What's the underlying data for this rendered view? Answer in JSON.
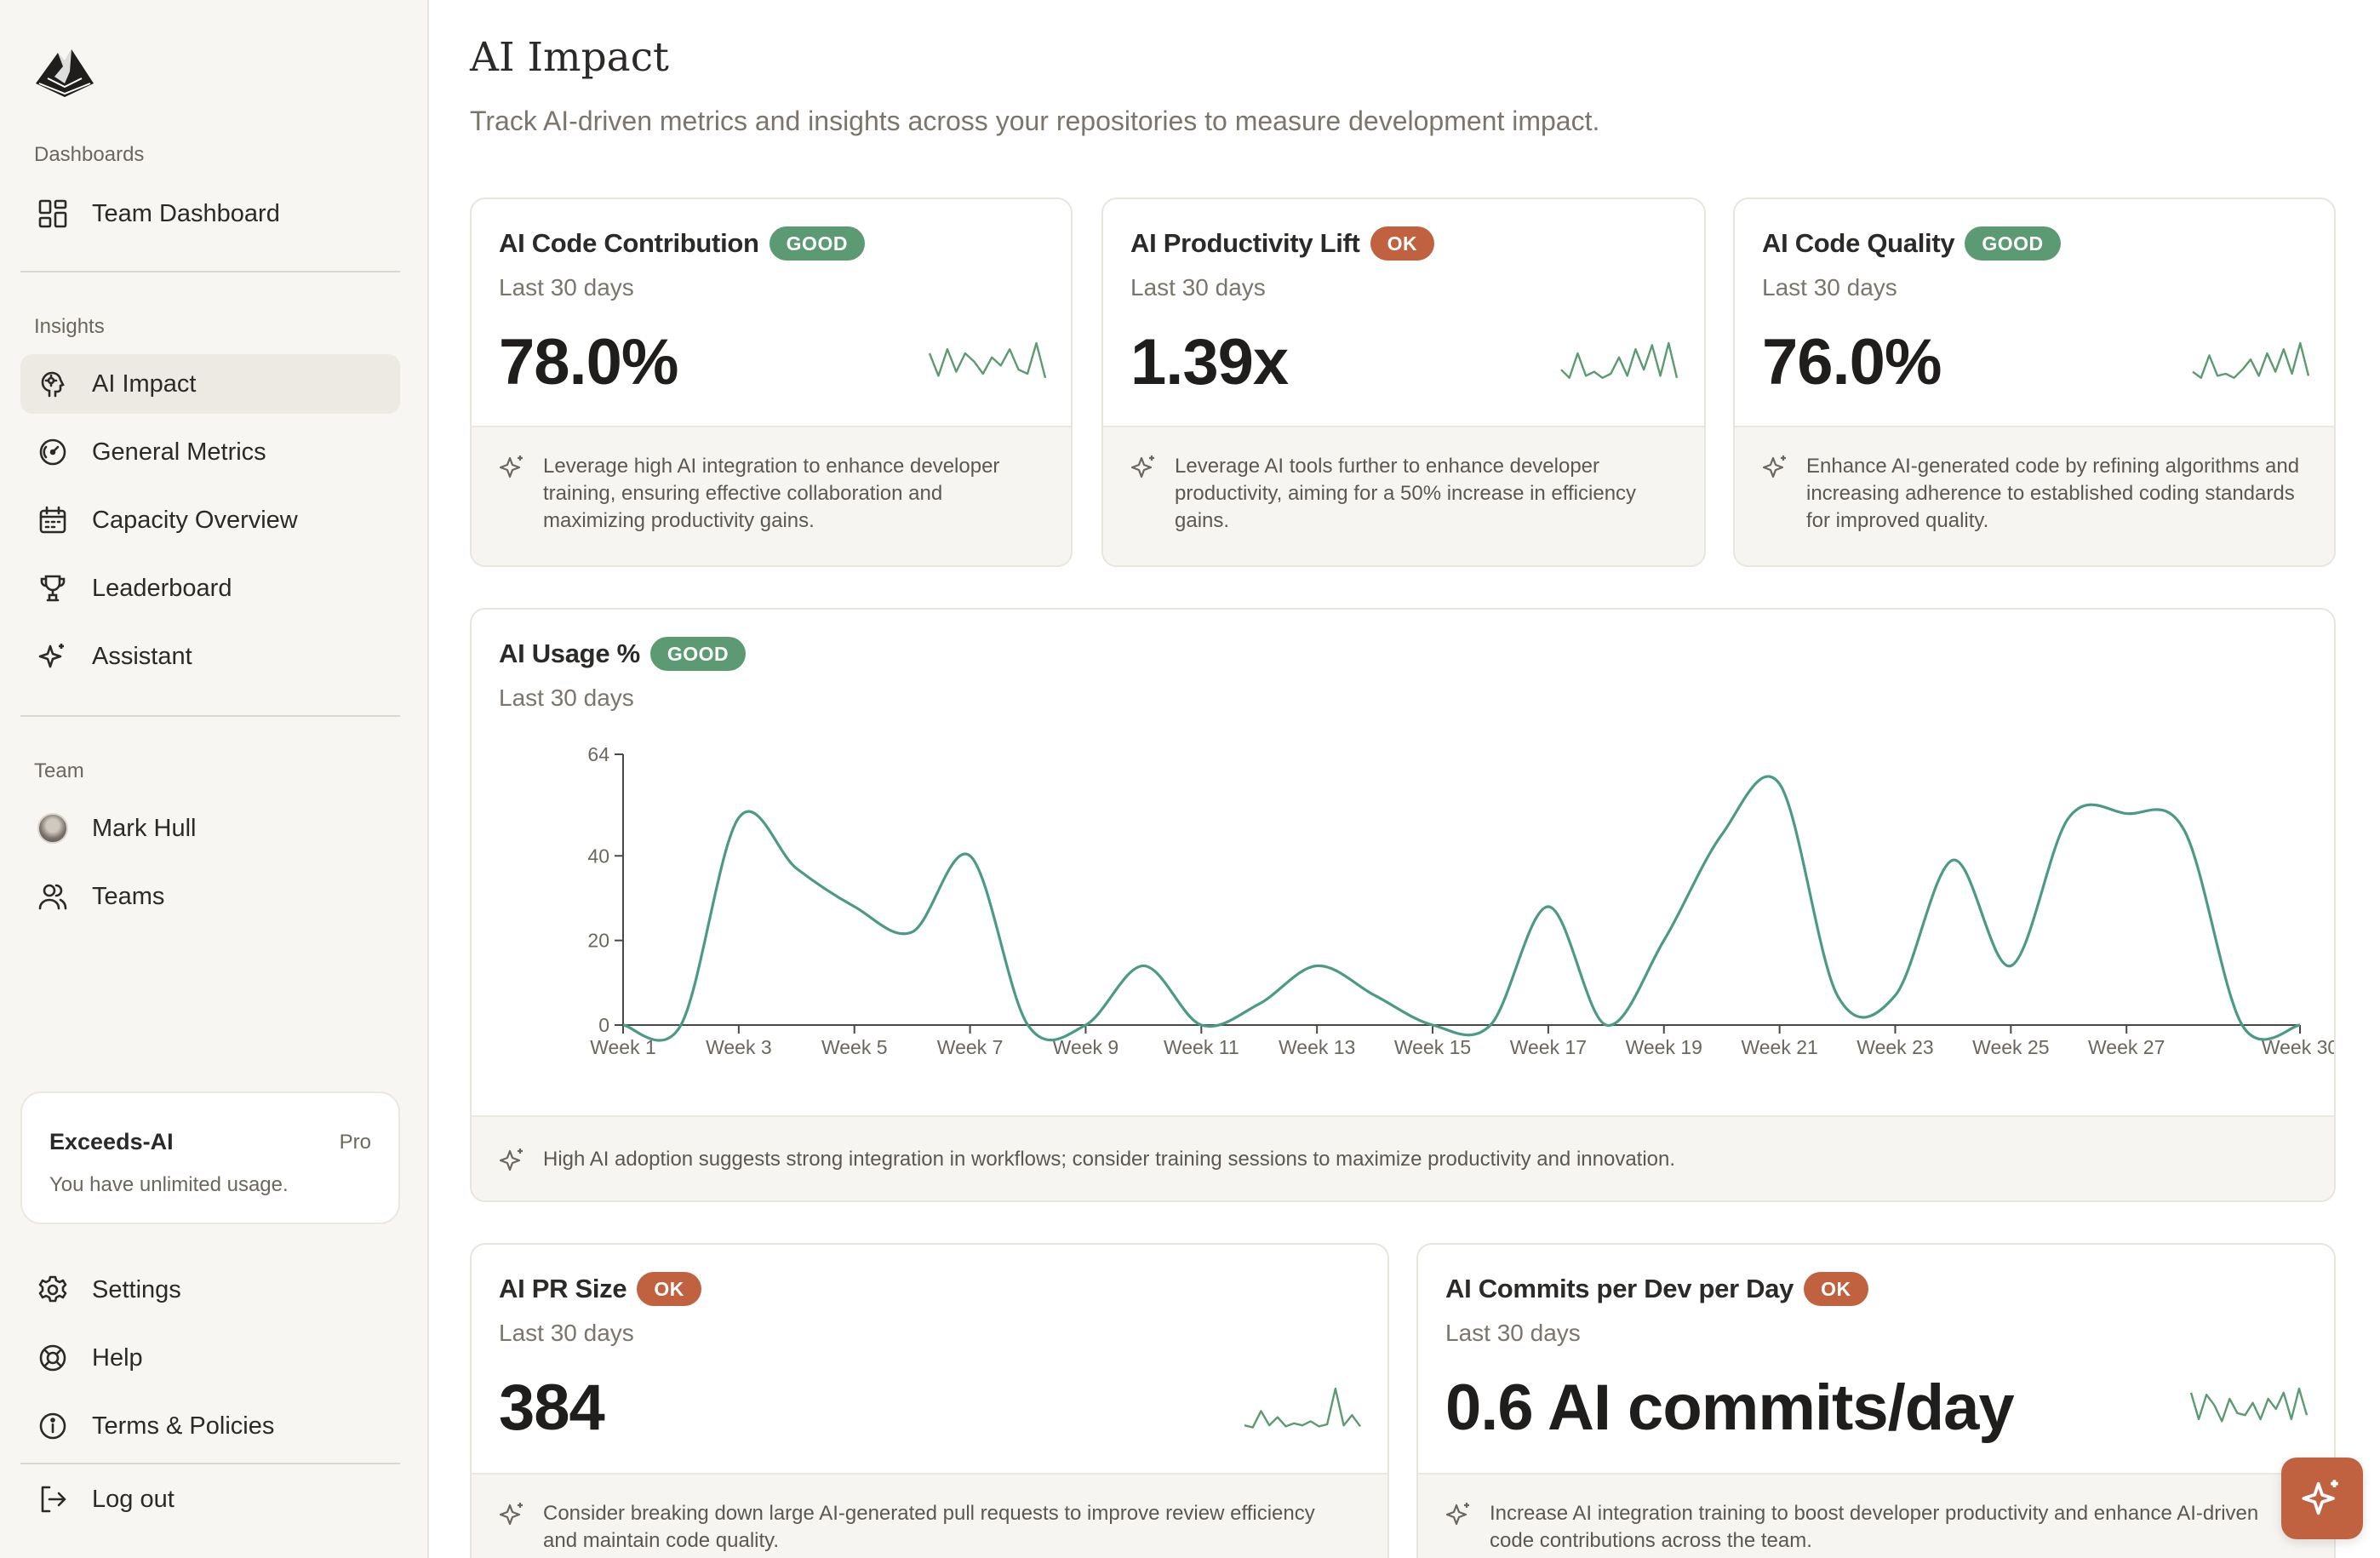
{
  "sidebar": {
    "sections": {
      "dashboards": "Dashboards",
      "insights": "Insights",
      "team": "Team"
    },
    "items": {
      "team_dashboard": "Team Dashboard",
      "ai_impact": "AI Impact",
      "general_metrics": "General Metrics",
      "capacity_overview": "Capacity Overview",
      "leaderboard": "Leaderboard",
      "assistant": "Assistant",
      "mark_hull": "Mark Hull",
      "teams": "Teams",
      "settings": "Settings",
      "help": "Help",
      "terms": "Terms & Policies",
      "logout": "Log out"
    },
    "plan": {
      "name": "Exceeds-AI",
      "tier": "Pro",
      "desc": "You have unlimited usage."
    }
  },
  "header": {
    "title": "AI Impact",
    "subtitle": "Track AI-driven metrics and insights across your repositories to measure development impact."
  },
  "cards": {
    "contribution": {
      "title": "AI Code Contribution",
      "badge": "GOOD",
      "period": "Last 30 days",
      "value": "78.0%",
      "insight": "Leverage high AI integration to enhance developer training, ensuring effective collaboration and maximizing productivity gains."
    },
    "productivity": {
      "title": "AI Productivity Lift",
      "badge": "OK",
      "period": "Last 30 days",
      "value": "1.39x",
      "insight": "Leverage AI tools further to enhance developer productivity, aiming for a 50% increase in efficiency gains."
    },
    "quality": {
      "title": "AI Code Quality",
      "badge": "GOOD",
      "period": "Last 30 days",
      "value": "76.0%",
      "insight": "Enhance AI-generated code by refining algorithms and increasing adherence to established coding standards for improved quality."
    },
    "usage": {
      "title": "AI Usage %",
      "badge": "GOOD",
      "period": "Last 30 days",
      "insight": "High AI adoption suggests strong integration in workflows; consider training sessions to maximize productivity and innovation."
    },
    "pr_size": {
      "title": "AI PR Size",
      "badge": "OK",
      "period": "Last 30 days",
      "value": "384",
      "insight": "Consider breaking down large AI-generated pull requests to improve review efficiency and maintain code quality."
    },
    "commits": {
      "title": "AI Commits per Dev per Day",
      "badge": "OK",
      "period": "Last 30 days",
      "value": "0.6 AI commits/day",
      "insight": "Increase AI integration training to boost developer productivity and enhance AI-driven code contributions across the team."
    }
  },
  "colors": {
    "good": "#5b9a73",
    "ok": "#c0613f",
    "line": "#4a9a85",
    "spark": "#5b9a73"
  },
  "chart_data": {
    "type": "line",
    "title": "AI Usage %",
    "x": [
      "Week 1",
      "Week 2",
      "Week 3",
      "Week 4",
      "Week 5",
      "Week 6",
      "Week 7",
      "Week 8",
      "Week 9",
      "Week 10",
      "Week 11",
      "Week 12",
      "Week 13",
      "Week 14",
      "Week 15",
      "Week 16",
      "Week 17",
      "Week 18",
      "Week 19",
      "Week 20",
      "Week 21",
      "Week 22",
      "Week 23",
      "Week 24",
      "Week 25",
      "Week 26",
      "Week 27",
      "Week 28",
      "Week 29",
      "Week 30"
    ],
    "x_tick_labels": [
      "Week 1",
      "Week 3",
      "Week 5",
      "Week 7",
      "Week 9",
      "Week 11",
      "Week 13",
      "Week 15",
      "Week 17",
      "Week 19",
      "Week 21",
      "Week 23",
      "Week 25",
      "Week 27",
      "Week 30"
    ],
    "values": [
      0,
      0,
      49,
      37,
      28,
      22,
      40,
      0,
      0,
      14,
      0,
      5,
      14,
      7,
      0,
      0,
      28,
      0,
      20,
      45,
      57,
      7,
      7,
      39,
      14,
      49,
      50,
      46,
      0,
      0
    ],
    "ylim": [
      0,
      64
    ],
    "y_ticks": [
      0,
      20,
      40,
      64
    ],
    "grid": false,
    "legend": "none"
  },
  "sparklines": {
    "contribution": [
      30,
      8,
      34,
      12,
      30,
      22,
      10,
      26,
      18,
      34,
      14,
      10,
      40,
      6
    ],
    "productivity": [
      14,
      6,
      30,
      8,
      12,
      6,
      10,
      26,
      8,
      34,
      14,
      38,
      8,
      40,
      6
    ],
    "quality": [
      12,
      6,
      28,
      8,
      10,
      6,
      14,
      24,
      8,
      30,
      12,
      34,
      10,
      40,
      8
    ],
    "pr_size": [
      4,
      2,
      18,
      4,
      12,
      3,
      6,
      4,
      8,
      3,
      5,
      40,
      4,
      14,
      3
    ],
    "commits": [
      36,
      10,
      34,
      24,
      8,
      30,
      16,
      14,
      26,
      10,
      30,
      20,
      36,
      10,
      40,
      14
    ]
  }
}
